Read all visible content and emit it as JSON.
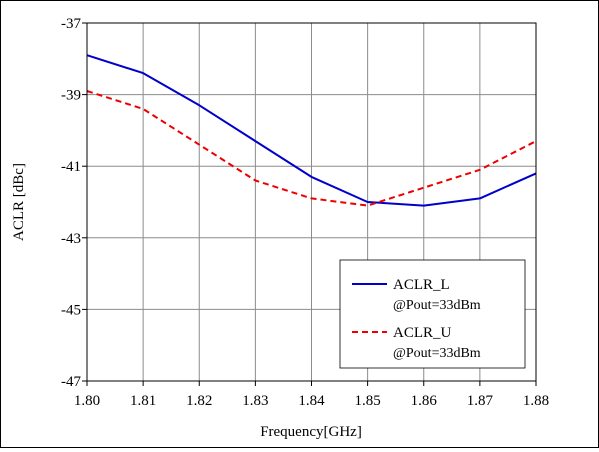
{
  "chart_data": {
    "type": "line",
    "title": "",
    "xlabel": "Frequency[GHz]",
    "ylabel": "ACLR [dBc]",
    "xlim": [
      1.8,
      1.88
    ],
    "ylim": [
      -47,
      -37
    ],
    "x_ticks": [
      "1.80",
      "1.81",
      "1.82",
      "1.83",
      "1.84",
      "1.85",
      "1.86",
      "1.87",
      "1.88"
    ],
    "y_ticks": [
      "-37",
      "-39",
      "-41",
      "-43",
      "-45",
      "-47"
    ],
    "grid": true,
    "legend_position": "bottom-right",
    "x": [
      1.8,
      1.81,
      1.82,
      1.83,
      1.84,
      1.85,
      1.86,
      1.87,
      1.88
    ],
    "series": [
      {
        "name": "ACLR_L",
        "name_line2": "@Pout=33dBm",
        "color": "#0000cc",
        "dash": "solid",
        "values": [
          -37.9,
          -38.4,
          -39.3,
          -40.3,
          -41.3,
          -42.0,
          -42.1,
          -41.9,
          -41.2
        ]
      },
      {
        "name": "ACLR_U",
        "name_line2": "@Pout=33dBm",
        "color": "#ee0000",
        "dash": "dashed",
        "values": [
          -38.9,
          -39.4,
          -40.4,
          -41.4,
          -41.9,
          -42.1,
          -41.6,
          -41.1,
          -40.3
        ]
      }
    ]
  }
}
